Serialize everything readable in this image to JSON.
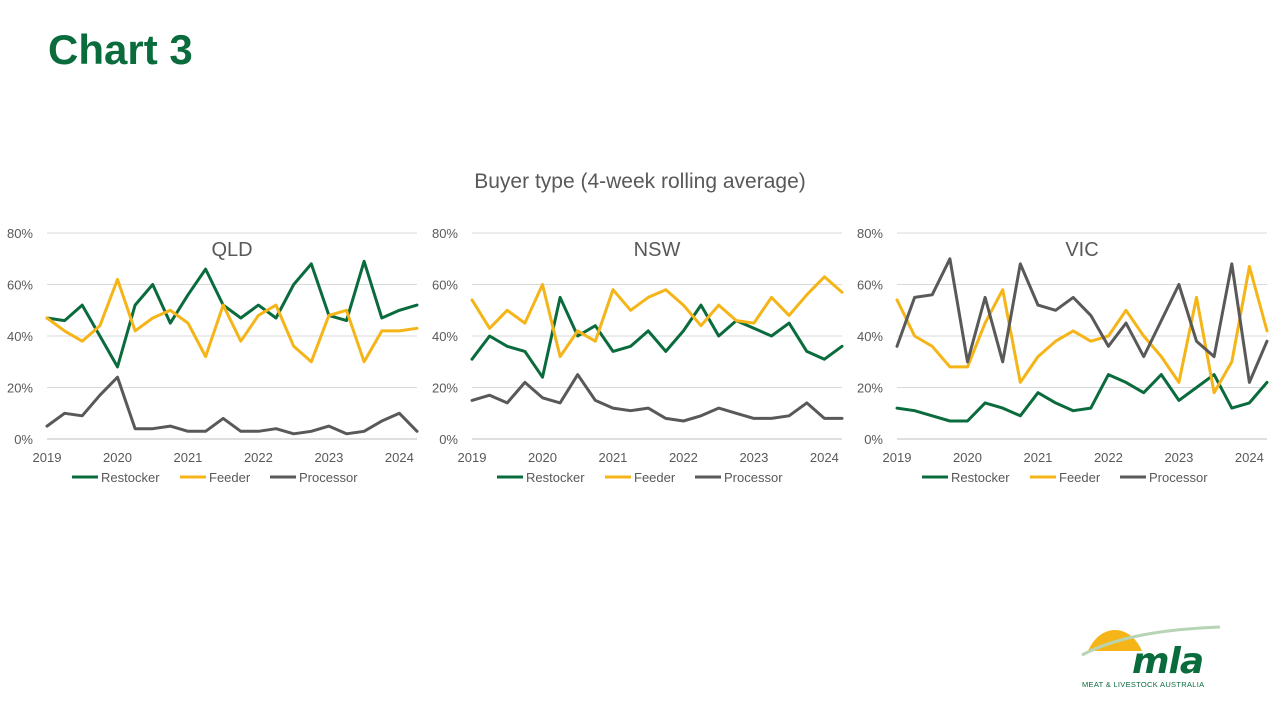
{
  "slide": {
    "title": "Chart 3",
    "chart_heading": "Buyer type (4-week rolling average)"
  },
  "logo": {
    "word": "mla",
    "tagline": "MEAT & LIVESTOCK AUSTRALIA"
  },
  "colors": {
    "restocker": "#0a6b3d",
    "feeder": "#f5b518",
    "processor": "#595959",
    "title": "#0a6b3d",
    "grid": "#d9d9d9",
    "axis_text": "#595959"
  },
  "chart_data": [
    {
      "type": "line",
      "title": "QLD",
      "ylim": [
        0,
        0.8
      ],
      "yticks": [
        "0%",
        "20%",
        "40%",
        "60%",
        "80%"
      ],
      "xlim": [
        2019,
        2024.25
      ],
      "xticks": [
        "2019",
        "2020",
        "2021",
        "2022",
        "2023",
        "2024"
      ],
      "grid": true,
      "legend_position": "bottom",
      "x": [
        2019.0,
        2019.25,
        2019.5,
        2019.75,
        2020.0,
        2020.25,
        2020.5,
        2020.75,
        2021.0,
        2021.25,
        2021.5,
        2021.75,
        2022.0,
        2022.25,
        2022.5,
        2022.75,
        2023.0,
        2023.25,
        2023.5,
        2023.75,
        2024.0,
        2024.25
      ],
      "series": [
        {
          "name": "Restocker",
          "values": [
            0.47,
            0.46,
            0.52,
            0.4,
            0.28,
            0.52,
            0.6,
            0.45,
            0.56,
            0.66,
            0.52,
            0.47,
            0.52,
            0.47,
            0.6,
            0.68,
            0.48,
            0.46,
            0.69,
            0.47,
            0.5,
            0.52
          ]
        },
        {
          "name": "Feeder",
          "values": [
            0.47,
            0.42,
            0.38,
            0.44,
            0.62,
            0.42,
            0.47,
            0.5,
            0.45,
            0.32,
            0.52,
            0.38,
            0.48,
            0.52,
            0.36,
            0.3,
            0.48,
            0.5,
            0.3,
            0.42,
            0.42,
            0.43
          ]
        },
        {
          "name": "Processor",
          "values": [
            0.05,
            0.1,
            0.09,
            0.17,
            0.24,
            0.04,
            0.04,
            0.05,
            0.03,
            0.03,
            0.08,
            0.03,
            0.03,
            0.04,
            0.02,
            0.03,
            0.05,
            0.02,
            0.03,
            0.07,
            0.1,
            0.03
          ]
        }
      ]
    },
    {
      "type": "line",
      "title": "NSW",
      "ylim": [
        0,
        0.8
      ],
      "yticks": [
        "0%",
        "20%",
        "40%",
        "60%",
        "80%"
      ],
      "xlim": [
        2019,
        2024.25
      ],
      "xticks": [
        "2019",
        "2020",
        "2021",
        "2022",
        "2023",
        "2024"
      ],
      "grid": true,
      "legend_position": "bottom",
      "x": [
        2019.0,
        2019.25,
        2019.5,
        2019.75,
        2020.0,
        2020.25,
        2020.5,
        2020.75,
        2021.0,
        2021.25,
        2021.5,
        2021.75,
        2022.0,
        2022.25,
        2022.5,
        2022.75,
        2023.0,
        2023.25,
        2023.5,
        2023.75,
        2024.0,
        2024.25
      ],
      "series": [
        {
          "name": "Restocker",
          "values": [
            0.31,
            0.4,
            0.36,
            0.34,
            0.24,
            0.55,
            0.4,
            0.44,
            0.34,
            0.36,
            0.42,
            0.34,
            0.42,
            0.52,
            0.4,
            0.46,
            0.43,
            0.4,
            0.45,
            0.34,
            0.31,
            0.36
          ]
        },
        {
          "name": "Feeder",
          "values": [
            0.54,
            0.43,
            0.5,
            0.45,
            0.6,
            0.32,
            0.42,
            0.38,
            0.58,
            0.5,
            0.55,
            0.58,
            0.52,
            0.44,
            0.52,
            0.46,
            0.45,
            0.55,
            0.48,
            0.56,
            0.63,
            0.57
          ]
        },
        {
          "name": "Processor",
          "values": [
            0.15,
            0.17,
            0.14,
            0.22,
            0.16,
            0.14,
            0.25,
            0.15,
            0.12,
            0.11,
            0.12,
            0.08,
            0.07,
            0.09,
            0.12,
            0.1,
            0.08,
            0.08,
            0.09,
            0.14,
            0.08,
            0.08
          ]
        }
      ]
    },
    {
      "type": "line",
      "title": "VIC",
      "ylim": [
        0,
        0.8
      ],
      "yticks": [
        "0%",
        "20%",
        "40%",
        "60%",
        "80%"
      ],
      "xlim": [
        2019,
        2024.25
      ],
      "xticks": [
        "2019",
        "2020",
        "2021",
        "2022",
        "2023",
        "2024"
      ],
      "grid": true,
      "legend_position": "bottom",
      "x": [
        2019.0,
        2019.25,
        2019.5,
        2019.75,
        2020.0,
        2020.25,
        2020.5,
        2020.75,
        2021.0,
        2021.25,
        2021.5,
        2021.75,
        2022.0,
        2022.25,
        2022.5,
        2022.75,
        2023.0,
        2023.25,
        2023.5,
        2023.75,
        2024.0,
        2024.25
      ],
      "series": [
        {
          "name": "Restocker",
          "values": [
            0.12,
            0.11,
            0.09,
            0.07,
            0.07,
            0.14,
            0.12,
            0.09,
            0.18,
            0.14,
            0.11,
            0.12,
            0.25,
            0.22,
            0.18,
            0.25,
            0.15,
            0.2,
            0.25,
            0.12,
            0.14,
            0.22
          ]
        },
        {
          "name": "Feeder",
          "values": [
            0.54,
            0.4,
            0.36,
            0.28,
            0.28,
            0.45,
            0.58,
            0.22,
            0.32,
            0.38,
            0.42,
            0.38,
            0.4,
            0.5,
            0.4,
            0.32,
            0.22,
            0.55,
            0.18,
            0.3,
            0.67,
            0.42
          ]
        },
        {
          "name": "Processor",
          "values": [
            0.36,
            0.55,
            0.56,
            0.7,
            0.3,
            0.55,
            0.3,
            0.68,
            0.52,
            0.5,
            0.55,
            0.48,
            0.36,
            0.45,
            0.32,
            0.46,
            0.6,
            0.38,
            0.32,
            0.68,
            0.22,
            0.38
          ]
        }
      ]
    }
  ]
}
